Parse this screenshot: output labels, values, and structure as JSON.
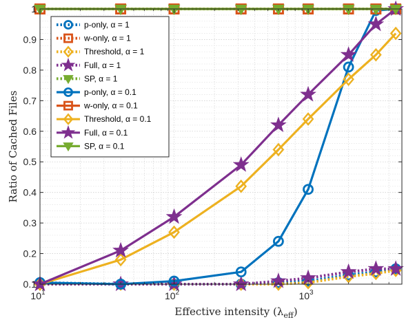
{
  "chart_data": {
    "type": "line",
    "xlabel": "Effective intensity (λ_eff)",
    "ylabel": "Ratio of Cached Files",
    "xscale": "log",
    "xlim": [
      10,
      5000
    ],
    "ylim": [
      0.1,
      1.0
    ],
    "grid": true,
    "legend_position": "top-left",
    "x_ticks": [
      {
        "value": 10,
        "base": "10",
        "exp": "1"
      },
      {
        "value": 100,
        "base": "10",
        "exp": "2"
      },
      {
        "value": 1000,
        "base": "10",
        "exp": "3"
      }
    ],
    "y_ticks": [
      "0.1",
      "0.2",
      "0.3",
      "0.4",
      "0.5",
      "0.6",
      "0.7",
      "0.8",
      "0.9",
      "1"
    ],
    "series": [
      {
        "name": "p-only, α = 1",
        "color": "#0072BD",
        "dash": "dot",
        "marker": "circle",
        "x": [
          10,
          40,
          100,
          316,
          600,
          1000,
          2000,
          3200,
          4500
        ],
        "y": [
          0.105,
          0.1,
          0.1,
          0.1,
          0.105,
          0.11,
          0.13,
          0.14,
          0.15
        ]
      },
      {
        "name": "w-only, α = 1",
        "color": "#D95319",
        "dash": "dot",
        "marker": "square",
        "x": [
          10,
          40,
          100,
          316,
          600,
          1000,
          2000,
          3200,
          4500
        ],
        "y": [
          1,
          1,
          1,
          1,
          1,
          1,
          1,
          1,
          1
        ]
      },
      {
        "name": "Threshold, α = 1",
        "color": "#EDB120",
        "dash": "dot",
        "marker": "diamond",
        "x": [
          10,
          40,
          100,
          316,
          600,
          1000,
          2000,
          3200,
          4500
        ],
        "y": [
          0.1,
          0.1,
          0.1,
          0.1,
          0.1,
          0.105,
          0.125,
          0.135,
          0.145
        ]
      },
      {
        "name": "Full, α = 1",
        "color": "#7E2F8E",
        "dash": "dot",
        "marker": "star",
        "x": [
          10,
          40,
          100,
          316,
          600,
          1000,
          2000,
          3200,
          4500
        ],
        "y": [
          0.1,
          0.1,
          0.1,
          0.1,
          0.11,
          0.12,
          0.14,
          0.15,
          0.15
        ]
      },
      {
        "name": "SP, α = 1",
        "color": "#77AC30",
        "dash": "dot",
        "marker": "triangle-down",
        "x": [
          10,
          40,
          100,
          316,
          600,
          1000,
          2000,
          3200,
          4500
        ],
        "y": [
          1,
          1,
          1,
          1,
          1,
          1,
          1,
          1,
          1
        ]
      },
      {
        "name": "p-only, α = 0.1",
        "color": "#0072BD",
        "dash": "solid",
        "marker": "circle",
        "x": [
          10,
          40,
          100,
          316,
          600,
          1000,
          2000,
          3200,
          4500
        ],
        "y": [
          0.105,
          0.1,
          0.11,
          0.14,
          0.24,
          0.41,
          0.81,
          0.995,
          1.0
        ]
      },
      {
        "name": "w-only, α = 0.1",
        "color": "#D95319",
        "dash": "solid",
        "marker": "square",
        "x": [
          10,
          40,
          100,
          316,
          600,
          1000,
          2000,
          3200,
          4500
        ],
        "y": [
          1,
          1,
          1,
          1,
          1,
          1,
          1,
          1,
          1
        ]
      },
      {
        "name": "Threshold, α = 0.1",
        "color": "#EDB120",
        "dash": "solid",
        "marker": "diamond",
        "x": [
          10,
          40,
          100,
          316,
          600,
          1000,
          2000,
          3200,
          4500
        ],
        "y": [
          0.1,
          0.18,
          0.27,
          0.42,
          0.54,
          0.64,
          0.77,
          0.85,
          0.92
        ]
      },
      {
        "name": "Full, α = 0.1",
        "color": "#7E2F8E",
        "dash": "solid",
        "marker": "star",
        "x": [
          10,
          40,
          100,
          316,
          600,
          1000,
          2000,
          3200,
          4500
        ],
        "y": [
          0.1,
          0.21,
          0.32,
          0.49,
          0.62,
          0.72,
          0.85,
          0.95,
          1.0
        ]
      },
      {
        "name": "SP, α = 0.1",
        "color": "#77AC30",
        "dash": "solid",
        "marker": "triangle-down",
        "x": [
          10,
          40,
          100,
          316,
          600,
          1000,
          2000,
          3200,
          4500
        ],
        "y": [
          1,
          1,
          1,
          1,
          1,
          1,
          1,
          1,
          1
        ]
      }
    ]
  }
}
